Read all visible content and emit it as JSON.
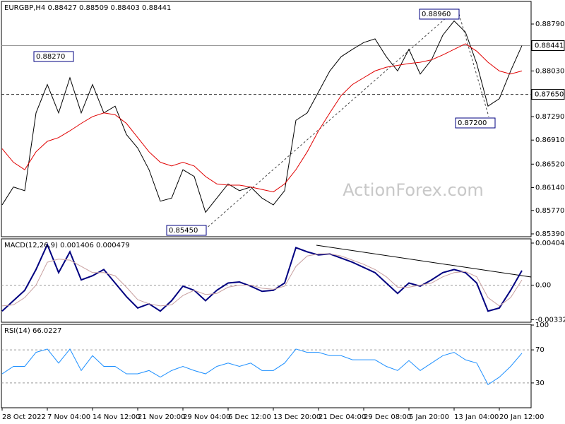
{
  "chart_data": [
    {
      "type": "line",
      "title": "EURGBP,H4 0.88427 0.88509 0.88403 0.88441",
      "watermark": "ActionForex.com",
      "categories": [
        "28 Oct 2022",
        null,
        null,
        null,
        "7 Nov 04:00",
        null,
        null,
        null,
        "14 Nov 12:00",
        null,
        null,
        null,
        "21 Nov 20:00",
        null,
        null,
        null,
        "29 Nov 04:00",
        null,
        null,
        null,
        "6 Dec 12:00",
        null,
        null,
        null,
        "13 Dec 20:00",
        null,
        null,
        null,
        "21 Dec 04:00",
        null,
        null,
        null,
        "29 Dec 08:00",
        null,
        null,
        null,
        "5 Jan 20:00",
        null,
        null,
        null,
        "13 Jan 04:00",
        null,
        null,
        null,
        "20 Jan 12:00",
        null,
        null
      ],
      "series": [
        {
          "color": "#000000",
          "values": [
            0.8586,
            0.8615,
            0.8609,
            0.8735,
            0.8781,
            0.8735,
            0.8792,
            0.8735,
            0.8781,
            0.8735,
            0.8746,
            0.87,
            0.8678,
            0.8643,
            0.8592,
            0.8597,
            0.8643,
            0.8632,
            0.8574,
            0.8597,
            0.862,
            0.8609,
            0.8615,
            0.8597,
            0.8586,
            0.8609,
            0.8723,
            0.8735,
            0.8769,
            0.8803,
            0.8826,
            0.8838,
            0.8849,
            0.8855,
            0.8826,
            0.8803,
            0.8838,
            0.8798,
            0.8821,
            0.8861,
            0.8884,
            0.8866,
            0.8815,
            0.8746,
            0.8758,
            0.8803,
            0.8844
          ]
        },
        {
          "color": "#e00000",
          "values": [
            0.8677,
            0.8655,
            0.8643,
            0.8672,
            0.8689,
            0.8695,
            0.8706,
            0.8718,
            0.8729,
            0.8735,
            0.8732,
            0.8718,
            0.8695,
            0.8672,
            0.8655,
            0.8649,
            0.8655,
            0.8649,
            0.8632,
            0.862,
            0.8618,
            0.8618,
            0.8615,
            0.8611,
            0.8607,
            0.862,
            0.8643,
            0.8672,
            0.8706,
            0.8735,
            0.8763,
            0.8781,
            0.8792,
            0.8803,
            0.8809,
            0.8812,
            0.8815,
            0.8817,
            0.8821,
            0.8829,
            0.8838,
            0.8847,
            0.8835,
            0.8817,
            0.8803,
            0.8798,
            0.8803
          ]
        }
      ],
      "ylim": [
        0.85344,
        0.89145
      ],
      "yticks": [
        {
          "value": 0.8879,
          "label": "0.88790"
        },
        {
          "value": 0.8803,
          "label": "0.88030"
        },
        {
          "value": 0.8729,
          "label": "0.87290"
        },
        {
          "value": 0.8691,
          "label": "0.86910"
        },
        {
          "value": 0.8652,
          "label": "0.86520"
        },
        {
          "value": 0.8614,
          "label": "0.86140"
        },
        {
          "value": 0.8577,
          "label": "0.85770"
        },
        {
          "value": 0.8539,
          "label": "0.85390"
        }
      ],
      "hlines": [
        {
          "value": 0.88441,
          "label": "0.88441"
        },
        {
          "value": 0.8765,
          "label": "0.87650"
        }
      ],
      "annotations": [
        "0.88270",
        "0.88960",
        "0.85450",
        "0.87200"
      ]
    },
    {
      "type": "line",
      "title": "MACD(12,26,9) 0.001406 0.000479",
      "series": [
        {
          "color": "#000080",
          "values": [
            -0.0025,
            -0.0015,
            -0.0005,
            0.0015,
            0.0039,
            0.0012,
            0.0032,
            0.0005,
            0.0009,
            0.0015,
            0.0002,
            -0.0011,
            -0.0022,
            -0.0018,
            -0.0025,
            -0.0015,
            -0.0001,
            -0.0005,
            -0.0015,
            -0.0005,
            0.0002,
            0.0003,
            -0.0001,
            -0.0006,
            -0.0005,
            0.0002,
            0.0036,
            0.0032,
            0.0029,
            0.003,
            0.0026,
            0.0022,
            0.0017,
            0.0012,
            0.0002,
            -0.0008,
            0.0002,
            -0.0001,
            0.0005,
            0.0012,
            0.0015,
            0.0012,
            0.0002,
            -0.0025,
            -0.0022,
            -0.0005,
            0.0014
          ]
        },
        {
          "color": "#c8a0a0",
          "values": [
            -0.002,
            -0.0019,
            -0.0012,
            0.0,
            0.0022,
            0.0025,
            0.0024,
            0.0018,
            0.0012,
            0.0012,
            0.0009,
            -0.0002,
            -0.0014,
            -0.0018,
            -0.002,
            -0.0019,
            -0.001,
            -0.0005,
            -0.0009,
            -0.0008,
            -0.0002,
            0.0,
            0.0,
            -0.0003,
            -0.0004,
            -0.0001,
            0.0018,
            0.0028,
            0.003,
            0.003,
            0.0028,
            0.0024,
            0.002,
            0.0015,
            0.0008,
            -0.0002,
            -0.0002,
            0.0,
            0.0002,
            0.0008,
            0.0012,
            0.0013,
            0.0008,
            -0.0012,
            -0.002,
            -0.0012,
            0.0005
          ]
        }
      ],
      "ylim": [
        -0.00357,
        0.00438
      ],
      "yticks": [
        {
          "value": 0.004042,
          "label": "0.004042"
        },
        {
          "value": 0,
          "label": "0.00"
        },
        {
          "value": -0.003326,
          "label": "-0.003326"
        }
      ],
      "grid": true
    },
    {
      "type": "line",
      "title": "RSI(14) 66.0227",
      "series": [
        {
          "color": "#1e90ff",
          "values": [
            41,
            50,
            50,
            67,
            71,
            54,
            71,
            45,
            63,
            50,
            50,
            41,
            41,
            45,
            37,
            45,
            50,
            45,
            41,
            50,
            54,
            50,
            54,
            45,
            45,
            54,
            71,
            67,
            67,
            63,
            63,
            58,
            58,
            58,
            50,
            45,
            57,
            45,
            54,
            63,
            67,
            58,
            54,
            28,
            37,
            50,
            66
          ]
        }
      ],
      "ylim": [
        0,
        100
      ],
      "yticks": [
        100,
        70,
        30
      ],
      "grid": true
    }
  ]
}
